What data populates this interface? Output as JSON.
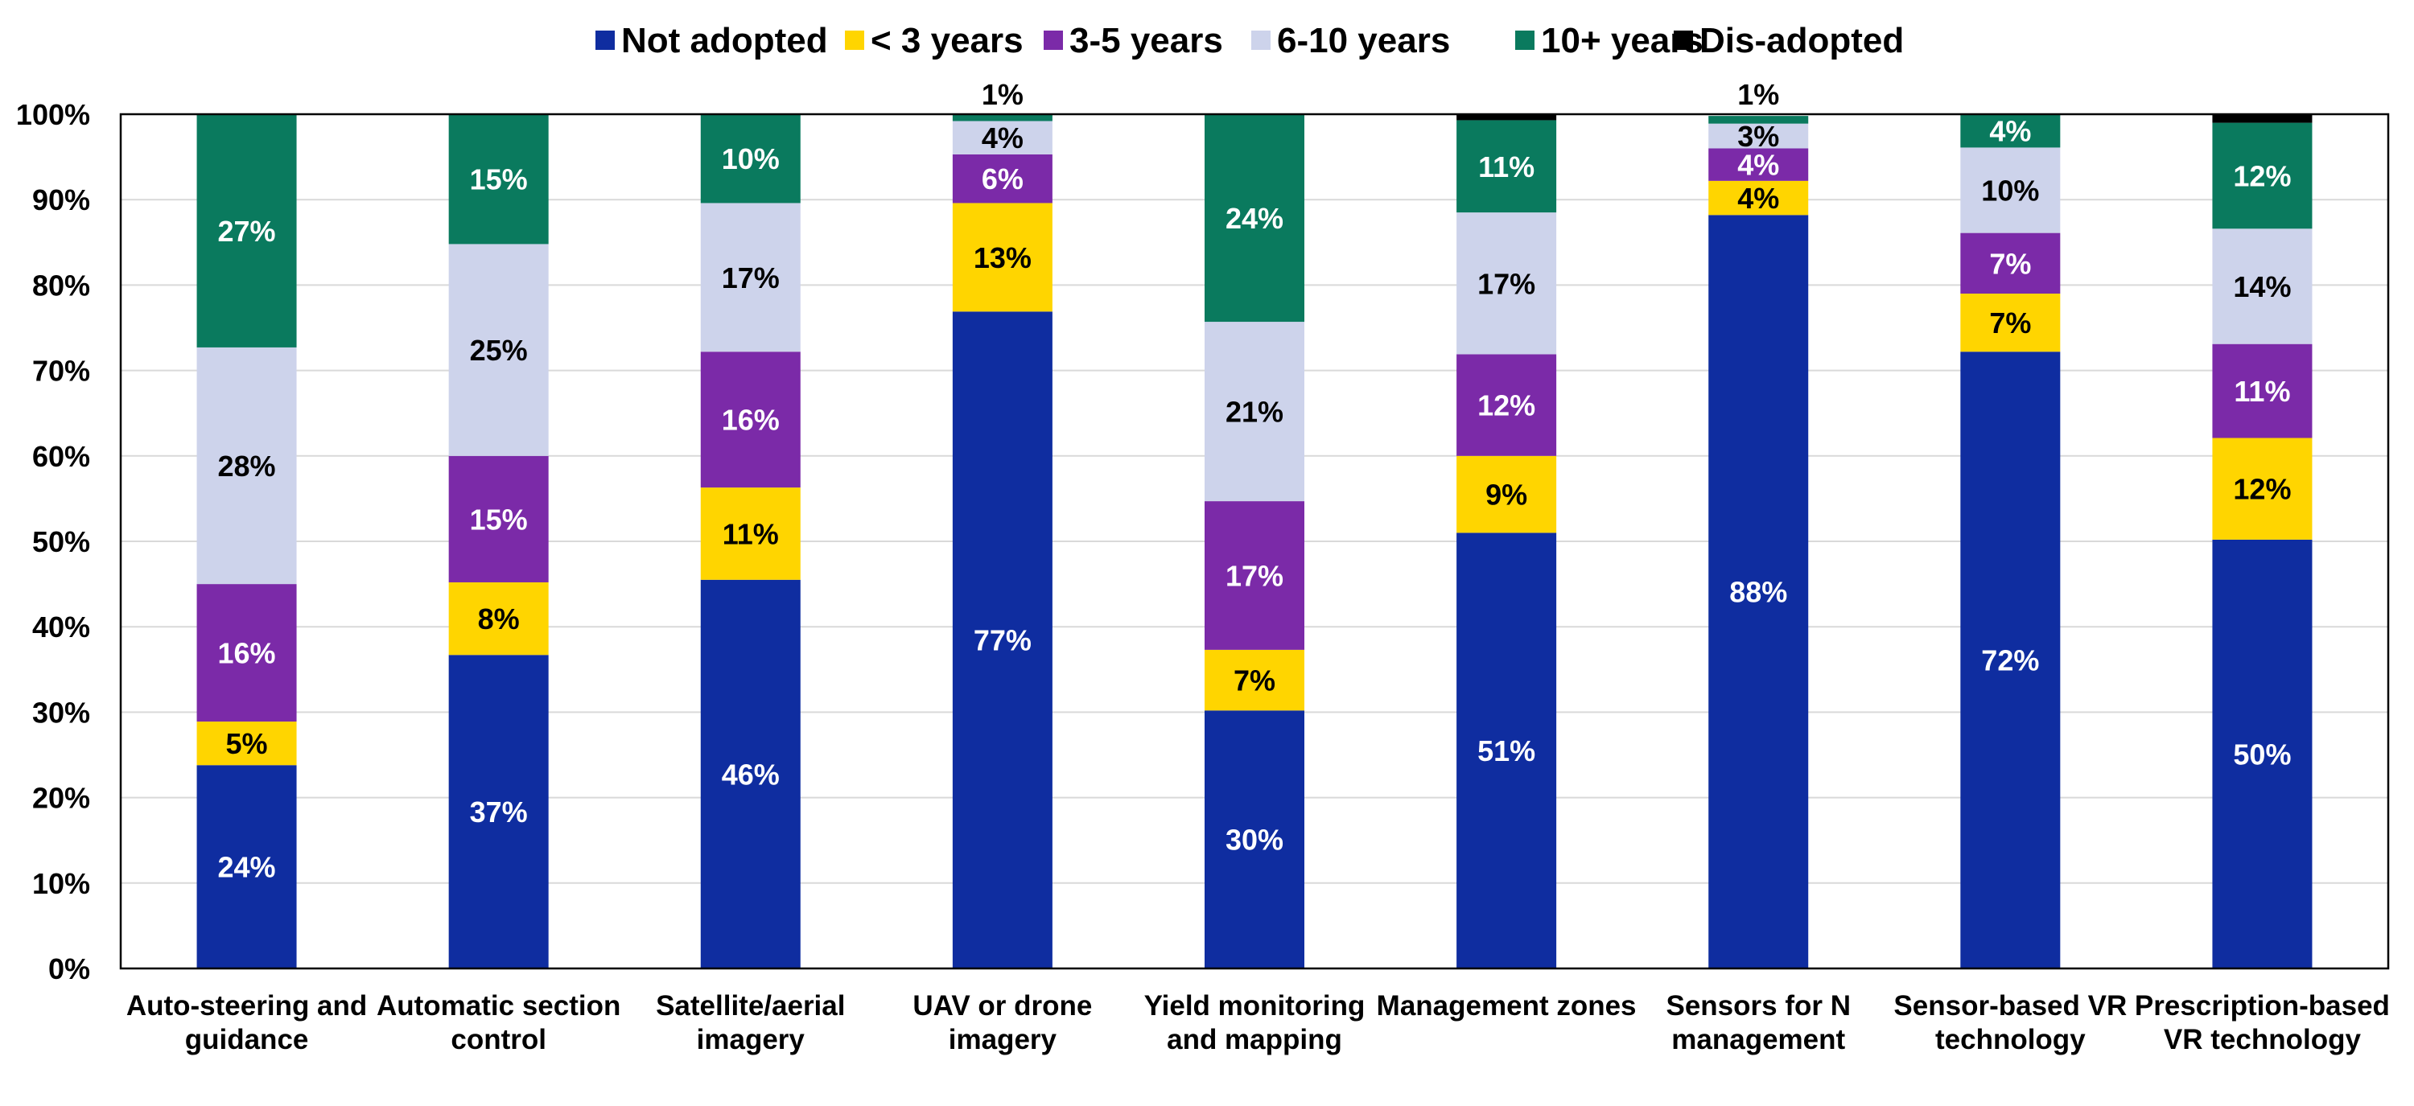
{
  "chart_data": {
    "type": "bar",
    "stacked": true,
    "title": "",
    "xlabel": "",
    "ylabel": "",
    "ylim": [
      0,
      100
    ],
    "yticks": [
      "0%",
      "10%",
      "20%",
      "30%",
      "40%",
      "50%",
      "60%",
      "70%",
      "80%",
      "90%",
      "100%"
    ],
    "grid": true,
    "legend_position": "top-center",
    "categories": [
      [
        "Auto-steering and",
        "guidance"
      ],
      [
        "Automatic section",
        "control"
      ],
      [
        "Satellite/aerial",
        "imagery"
      ],
      [
        "UAV or drone",
        "imagery"
      ],
      [
        "Yield monitoring",
        "and mapping"
      ],
      [
        "Management zones"
      ],
      [
        "Sensors for N",
        "management"
      ],
      [
        "Sensor-based VR",
        "technology"
      ],
      [
        "Prescription-based",
        "VR technology"
      ]
    ],
    "series": [
      {
        "name": "Not adopted",
        "color": "#0F2DA0",
        "label_color": "#ffffff",
        "values": [
          23.8,
          36.7,
          45.5,
          76.9,
          30.2,
          51.0,
          88.2,
          72.2,
          50.2
        ],
        "labels": [
          "24%",
          "37%",
          "46%",
          "77%",
          "30%",
          "51%",
          "88%",
          "72%",
          "50%"
        ]
      },
      {
        "name": "< 3 years",
        "color": "#FFD500",
        "label_color": "#000000",
        "values": [
          5.1,
          8.5,
          10.8,
          12.7,
          7.1,
          9.0,
          4.0,
          6.8,
          11.9
        ],
        "labels": [
          "5%",
          "8%",
          "11%",
          "13%",
          "7%",
          "9%",
          "4%",
          "7%",
          "12%"
        ]
      },
      {
        "name": "3-5 years",
        "color": "#7B2AA8",
        "label_color": "#ffffff",
        "values": [
          16.1,
          14.8,
          15.9,
          5.7,
          17.4,
          11.9,
          3.8,
          7.1,
          11.0
        ],
        "labels": [
          "16%",
          "15%",
          "16%",
          "6%",
          "17%",
          "12%",
          "4%",
          "7%",
          "11%"
        ]
      },
      {
        "name": "6-10 years",
        "color": "#CDD3EB",
        "label_color": "#000000",
        "values": [
          27.7,
          24.8,
          17.4,
          3.9,
          21.0,
          16.6,
          2.9,
          10.0,
          13.5
        ],
        "labels": [
          "28%",
          "25%",
          "17%",
          "4%",
          "21%",
          "17%",
          "3%",
          "10%",
          "14%"
        ]
      },
      {
        "name": "10+ years",
        "color": "#0A7A5E",
        "label_color": "#ffffff",
        "values": [
          27.3,
          15.2,
          10.4,
          0.8,
          24.3,
          10.8,
          0.9,
          3.9,
          12.4
        ],
        "labels": [
          "27%",
          "15%",
          "10%",
          "1%",
          "24%",
          "11%",
          "1%",
          "4%",
          "12%"
        ]
      },
      {
        "name": "Dis-adopted",
        "color": "#000000",
        "label_color": "#ffffff",
        "values": [
          0.0,
          0.0,
          0.0,
          0.0,
          0.0,
          0.7,
          0.0,
          0.0,
          1.0
        ],
        "labels": [
          "",
          "",
          "",
          "",
          "",
          "",
          "",
          "",
          ""
        ]
      }
    ]
  }
}
